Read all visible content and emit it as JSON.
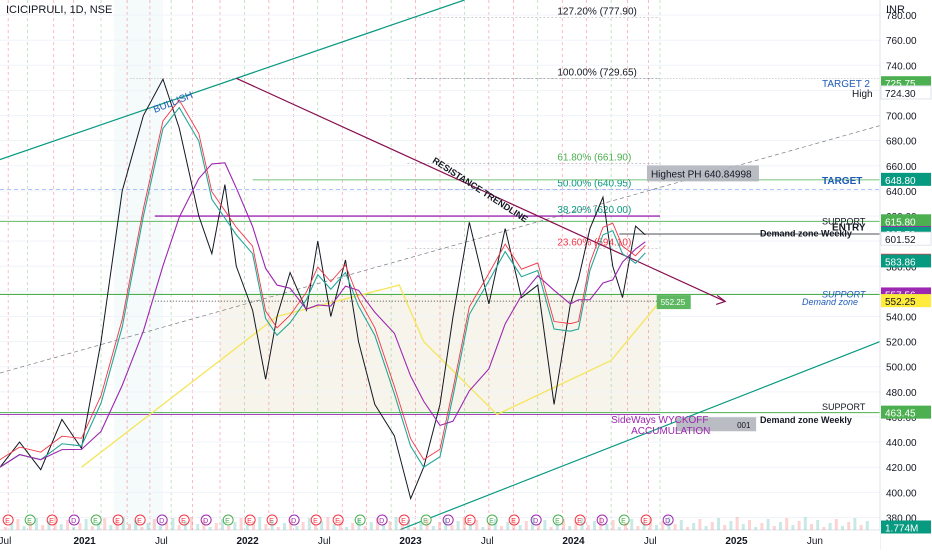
{
  "header": {
    "symbol": "ICICIPRULI, 1D, NSE",
    "currency": "INR"
  },
  "chart_data": {
    "type": "line",
    "title": "ICICIPRULI, 1D, NSE",
    "price_axis": {
      "ticks": [
        780,
        760,
        740,
        720,
        700,
        680,
        660,
        640,
        620,
        600,
        580,
        560,
        540,
        520,
        500,
        480,
        460,
        440,
        420,
        400,
        380
      ],
      "range": [
        370,
        792
      ]
    },
    "time_axis": {
      "labels": [
        {
          "t": 0.04,
          "label": "Jul"
        },
        {
          "t": 0.5,
          "label": "2021"
        },
        {
          "t": 1.0,
          "label": "Jul"
        },
        {
          "t": 1.5,
          "label": "2022"
        },
        {
          "t": 2.0,
          "label": "Jul"
        },
        {
          "t": 2.5,
          "label": "2023"
        },
        {
          "t": 3.0,
          "label": "Jul"
        },
        {
          "t": 3.5,
          "label": "2024"
        },
        {
          "t": 4.0,
          "label": "Jul"
        },
        {
          "t": 4.5,
          "label": "2025"
        },
        {
          "t": 5.0,
          "label": "Jun"
        }
      ],
      "range": [
        0,
        5.4
      ]
    },
    "price_series": {
      "name": "",
      "t": [
        0.0,
        0.12,
        0.25,
        0.38,
        0.5,
        0.62,
        0.75,
        0.88,
        1.0,
        1.1,
        1.22,
        1.3,
        1.38,
        1.45,
        1.55,
        1.63,
        1.7,
        1.78,
        1.88,
        1.95,
        2.03,
        2.12,
        2.2,
        2.3,
        2.42,
        2.52,
        2.6,
        2.7,
        2.78,
        2.88,
        3.0,
        3.1,
        3.2,
        3.3,
        3.4,
        3.5,
        3.55,
        3.62,
        3.7,
        3.76,
        3.82,
        3.9,
        3.96
      ],
      "close": [
        420,
        440,
        418,
        458,
        435,
        520,
        640,
        700,
        729,
        690,
        620,
        590,
        645,
        580,
        545,
        490,
        540,
        575,
        545,
        600,
        540,
        585,
        520,
        470,
        445,
        395,
        420,
        470,
        540,
        615,
        550,
        610,
        555,
        565,
        470,
        550,
        570,
        610,
        635,
        580,
        555,
        612,
        605
      ]
    },
    "levels": [
      {
        "label": "127.20% (777.90)",
        "price": 777.9
      },
      {
        "label": "100.00% (729.65)",
        "price": 729.65
      },
      {
        "label": "61.80% (661.90)",
        "price": 661.9
      },
      {
        "label": "50.00% (640.95)",
        "price": 640.95
      },
      {
        "label": "38.20% (620.00)",
        "price": 620.0
      },
      {
        "label": "23.60% (594.10)",
        "price": 594.1
      }
    ],
    "annotations": {
      "bullish": "BULLISH",
      "resistance": "RESISTANCE TRENDLINE",
      "highest": "Highest PH 640.84998",
      "high_label": "High",
      "target2": "TARGET 2",
      "target": "TARGET",
      "support": "SUPPORT",
      "entry": "ENTRY",
      "dz_weekly": "Demand zone Weekly",
      "dz": "Demand zone",
      "sideways": "SideWays WYCKOFF",
      "accum": "ACCUMULATION",
      "partial_001": "001",
      "green_tag": "552.25"
    },
    "price_labels": [
      {
        "text": "725.75",
        "price": 725.75,
        "bg": "#4caf50",
        "fg": "#ffffff"
      },
      {
        "text": "724.30",
        "price": 718.0,
        "bg": "#ffffff",
        "fg": "#131722"
      },
      {
        "text": "648.80",
        "price": 648.8,
        "bg": "#089981",
        "fg": "#ffffff"
      },
      {
        "text": "615.80",
        "price": 615.8,
        "bg": "#4caf50",
        "fg": "#ffffff"
      },
      {
        "text": "606.40",
        "price": 606.4,
        "bg": "#9c27b0",
        "fg": "#ffffff"
      },
      {
        "text": "605.70",
        "price": 605.7,
        "bg": "#089981",
        "fg": "#ffffff"
      },
      {
        "text": "601.52",
        "price": 601.52,
        "bg": "#ffffff",
        "fg": "#131722"
      },
      {
        "text": "584.38",
        "price": 584.38,
        "bg": "#f23645",
        "fg": "#ffffff"
      },
      {
        "text": "583.86",
        "price": 583.86,
        "bg": "#089981",
        "fg": "#ffffff"
      },
      {
        "text": "557.56",
        "price": 557.56,
        "bg": "#9c27b0",
        "fg": "#ffffff"
      },
      {
        "text": "552.30",
        "price": 552.3,
        "bg": "#4caf50",
        "fg": "#ffffff"
      },
      {
        "text": "552.25",
        "price": 552.25,
        "bg": "#ffeb3b",
        "fg": "#131722"
      },
      {
        "text": "463.45",
        "price": 463.45,
        "bg": "#4caf50",
        "fg": "#ffffff"
      },
      {
        "text": "1.774M",
        "price": 372.0,
        "bg": "#089981",
        "fg": "#ffffff"
      }
    ],
    "event_markers": [
      "E",
      "E",
      "E",
      "D",
      "E",
      "E",
      "E",
      "D",
      "E",
      "D",
      "E",
      "E",
      "E",
      "D",
      "E",
      "E",
      "E",
      "D",
      "E",
      "E",
      "D",
      "E",
      "E",
      "E",
      "D",
      "E",
      "E",
      "D",
      "E",
      "E",
      "D"
    ]
  }
}
